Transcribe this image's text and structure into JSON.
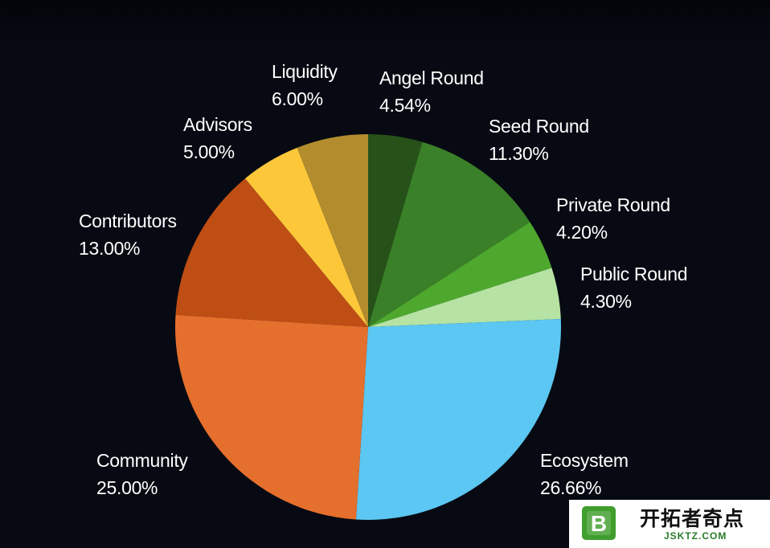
{
  "chart_data": {
    "type": "pie",
    "title": "",
    "start_angle_deg": 0,
    "direction": "clockwise",
    "legend": "none",
    "slices": [
      {
        "label": "Angel Round",
        "value": 4.54,
        "value_text": "4.54%",
        "color": "#265219"
      },
      {
        "label": "Seed Round",
        "value": 11.3,
        "value_text": "11.30%",
        "color": "#3a8028"
      },
      {
        "label": "Private Round",
        "value": 4.2,
        "value_text": "4.20%",
        "color": "#4ea82e"
      },
      {
        "label": "Public Round",
        "value": 4.3,
        "value_text": "4.30%",
        "color": "#b6e3a4"
      },
      {
        "label": "Ecosystem",
        "value": 26.66,
        "value_text": "26.66%",
        "color": "#5bc7f2"
      },
      {
        "label": "Community",
        "value": 25.0,
        "value_text": "25.00%",
        "color": "#e56f2d"
      },
      {
        "label": "Contributors",
        "value": 13.0,
        "value_text": "13.00%",
        "color": "#bf4e15"
      },
      {
        "label": "Advisors",
        "value": 5.0,
        "value_text": "5.00%",
        "color": "#fcc83a"
      },
      {
        "label": "Liquidity",
        "value": 6.0,
        "value_text": "6.00%",
        "color": "#b38c2e"
      }
    ]
  },
  "watermark": {
    "logo_letter": "B",
    "title": "开拓者奇点",
    "subtitle": "JSKTZ.COM"
  }
}
